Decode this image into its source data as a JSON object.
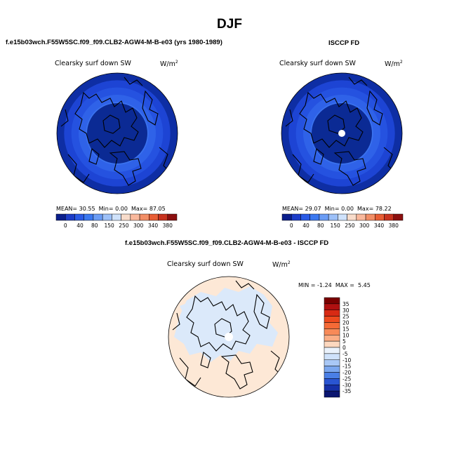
{
  "title": "DJF",
  "panels": [
    {
      "header": "f.e15b03wch.F55W5SC.f09_f09.CLB2-AGW4-M-B-e03 (yrs 1980-1989)",
      "variable": "Clearsky surf down SW",
      "units": "W/m",
      "units_exp": "2",
      "mean_label": "MEAN=",
      "mean": "30.55",
      "min_label": "Min=",
      "min": "0.00",
      "max_label": "Max=",
      "max": "87.05",
      "has_pole_hole": false
    },
    {
      "header": "ISCCP FD",
      "variable": "Clearsky surf down SW",
      "units": "W/m",
      "units_exp": "2",
      "mean_label": "MEAN=",
      "mean": "29.07",
      "min_label": "Min=",
      "min": "0.00",
      "max_label": "Max=",
      "max": "78.22",
      "has_pole_hole": true
    }
  ],
  "diff_panel": {
    "header": "f.e15b03wch.F55W5SC.f09_f09.CLB2-AGW4-M-B-e03 - ISCCP FD",
    "variable": "Clearsky surf down SW",
    "units": "W/m",
    "units_exp": "2",
    "min_label": "MIN =",
    "min": "-1.24",
    "max_label": "MAX =",
    "max": "5.45"
  },
  "chart_data": [
    {
      "type": "heatmap",
      "projection": "north polar stereographic",
      "title": "Clearsky surf down SW",
      "units": "W/m2",
      "colorbar_levels": [
        0,
        40,
        80,
        150,
        250,
        300,
        340,
        380
      ],
      "colorbar_colors": [
        "#0a1e8c",
        "#1c3cc8",
        "#2a5ae6",
        "#3a78f0",
        "#6a9cf5",
        "#9cc0f8",
        "#cfe2fb",
        "#f8dccb",
        "#f9b89c",
        "#f28e66",
        "#e85d34",
        "#c8321e",
        "#8c0f0f"
      ],
      "ring_colors": [
        "#0e2ea4",
        "#1d44d4",
        "#2552e0",
        "#2f62e8",
        "#3a72ee",
        "#4a82f1"
      ],
      "mean": 30.55,
      "min": 0.0,
      "max": 87.05
    },
    {
      "type": "heatmap",
      "projection": "north polar stereographic",
      "title": "Clearsky surf down SW",
      "units": "W/m2",
      "colorbar_levels": [
        0,
        40,
        80,
        150,
        250,
        300,
        340,
        380
      ],
      "colorbar_colors": [
        "#0a1e8c",
        "#1c3cc8",
        "#2a5ae6",
        "#3a78f0",
        "#6a9cf5",
        "#9cc0f8",
        "#cfe2fb",
        "#f8dccb",
        "#f9b89c",
        "#f28e66",
        "#e85d34",
        "#c8321e",
        "#8c0f0f"
      ],
      "ring_colors": [
        "#0e2ea4",
        "#1d44d4",
        "#2552e0",
        "#2f62e8",
        "#3a72ee",
        "#4a82f1"
      ],
      "mean": 29.07,
      "min": 0.0,
      "max": 78.22
    },
    {
      "type": "heatmap",
      "projection": "north polar stereographic",
      "title": "Clearsky surf down SW",
      "units": "W/m2",
      "colorbar_levels": [
        35,
        30,
        25,
        20,
        15,
        10,
        5,
        0,
        -5,
        -10,
        -15,
        -20,
        -25,
        -30,
        -35
      ],
      "colorbar_colors": [
        "#7a0000",
        "#b01010",
        "#d82a14",
        "#ee4a1e",
        "#f56a36",
        "#f88a58",
        "#fbae86",
        "#fdd8bf",
        "#eaf2fc",
        "#cfe2fb",
        "#a9c8f6",
        "#7ba7ef",
        "#4a7fe6",
        "#2a55d2",
        "#1630a8",
        "#0a1570"
      ],
      "background_color": "#fde8d6",
      "arctic_color": "#dbe9fa",
      "min": -1.24,
      "max": 5.45
    }
  ]
}
